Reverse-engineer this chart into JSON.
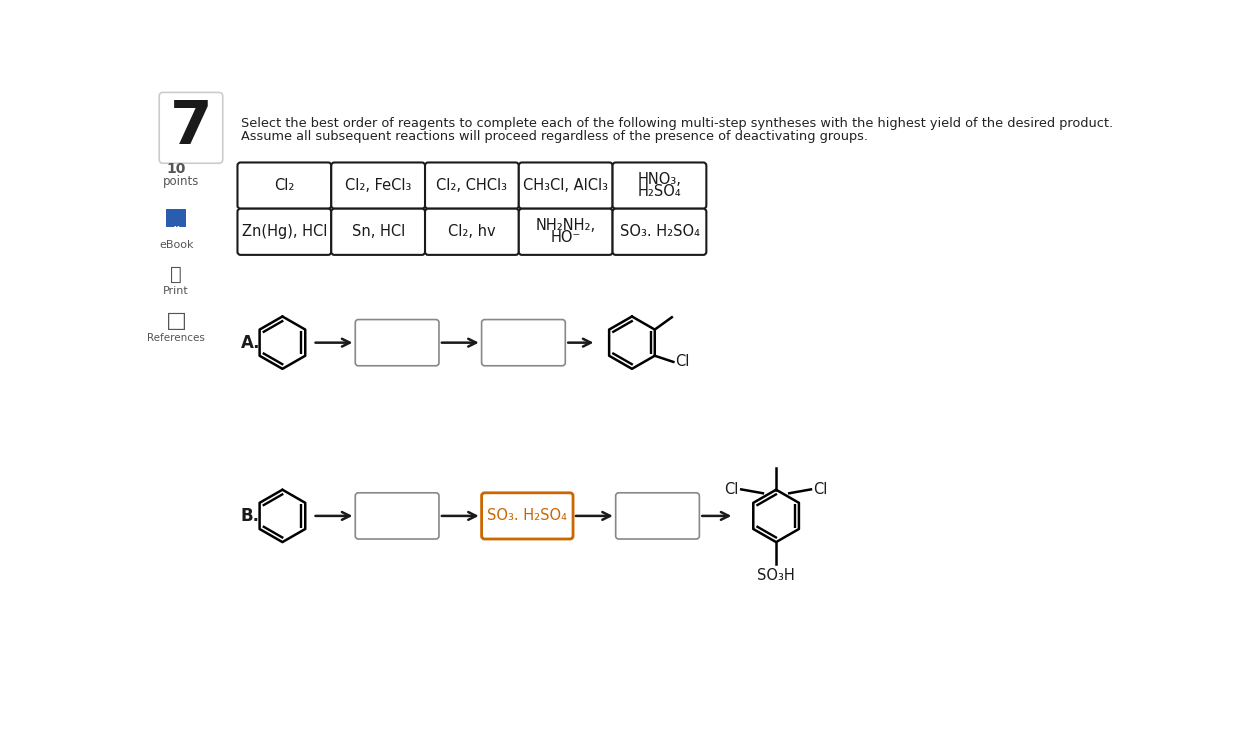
{
  "title_number": "7",
  "instruction_line1": "Select the best order of reagents to complete each of the following multi-step syntheses with the highest yield of the desired product.",
  "instruction_line2": "Assume all subsequent reactions will proceed regardless of the presence of deactivating groups.",
  "reagent_boxes_row1": [
    "Cl₂",
    "Cl₂, FeCl₃",
    "Cl₂, CHCl₃",
    "CH₃Cl, AlCl₃",
    "HNO₃,\nH₂SO₄"
  ],
  "reagent_boxes_row2": [
    "Zn(Hg), HCl",
    "Sn, HCl",
    "Cl₂, hv",
    "NH₂NH₂,\nHO⁻",
    "SO₃. H₂SO₄"
  ],
  "label_A": "A.",
  "label_B": "B.",
  "background_color": "#ffffff",
  "text_color": "#1a1a1a",
  "box_border_color": "#1a1a1a",
  "box_border_color_light": "#888888",
  "so3_box_border_color": "#cc6600",
  "so3_text_color": "#cc6600",
  "arrow_color": "#1a1a1a",
  "number_color": "#1a1a1a",
  "sidebar_color": "#555555",
  "blue_color": "#2a5db0"
}
